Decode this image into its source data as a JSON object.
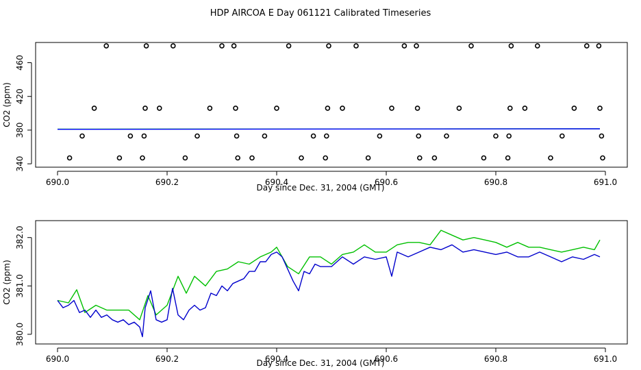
{
  "title": "HDP AIRCOA E  Day 061121  Calibrated Timeseries",
  "chart_data": [
    {
      "type": "scatter",
      "xlabel": "Day since Dec. 31, 2004 (GMT)",
      "ylabel": "CO2 (ppm)",
      "xlim": [
        689.96,
        691.04
      ],
      "ylim": [
        336,
        484
      ],
      "xticks": [
        "690.0",
        "690.2",
        "690.4",
        "690.6",
        "690.8",
        "691.0"
      ],
      "yticks": [
        "340",
        "380",
        "420",
        "460"
      ],
      "points": [
        [
          690.022,
          347
        ],
        [
          690.045,
          373
        ],
        [
          690.067,
          406
        ],
        [
          690.089,
          480
        ],
        [
          690.113,
          347
        ],
        [
          690.133,
          373
        ],
        [
          690.155,
          347
        ],
        [
          690.158,
          373
        ],
        [
          690.16,
          406
        ],
        [
          690.162,
          480
        ],
        [
          690.186,
          406
        ],
        [
          690.211,
          480
        ],
        [
          690.233,
          347
        ],
        [
          690.255,
          373
        ],
        [
          690.278,
          406
        ],
        [
          690.3,
          480
        ],
        [
          690.322,
          480
        ],
        [
          690.325,
          406
        ],
        [
          690.327,
          373
        ],
        [
          690.329,
          347
        ],
        [
          690.355,
          347
        ],
        [
          690.378,
          373
        ],
        [
          690.4,
          406
        ],
        [
          690.422,
          480
        ],
        [
          690.445,
          347
        ],
        [
          690.467,
          373
        ],
        [
          690.489,
          347
        ],
        [
          690.491,
          373
        ],
        [
          690.493,
          406
        ],
        [
          690.495,
          480
        ],
        [
          690.52,
          406
        ],
        [
          690.545,
          480
        ],
        [
          690.567,
          347
        ],
        [
          690.588,
          373
        ],
        [
          690.61,
          406
        ],
        [
          690.633,
          480
        ],
        [
          690.655,
          480
        ],
        [
          690.657,
          406
        ],
        [
          690.659,
          373
        ],
        [
          690.661,
          347
        ],
        [
          690.688,
          347
        ],
        [
          690.71,
          373
        ],
        [
          690.733,
          406
        ],
        [
          690.755,
          480
        ],
        [
          690.778,
          347
        ],
        [
          690.8,
          373
        ],
        [
          690.822,
          347
        ],
        [
          690.824,
          373
        ],
        [
          690.826,
          406
        ],
        [
          690.828,
          480
        ],
        [
          690.853,
          406
        ],
        [
          690.876,
          480
        ],
        [
          690.9,
          347
        ],
        [
          690.921,
          373
        ],
        [
          690.943,
          406
        ],
        [
          690.966,
          480
        ],
        [
          690.988,
          480
        ],
        [
          690.99,
          406
        ],
        [
          690.993,
          373
        ],
        [
          690.995,
          347
        ]
      ],
      "series": [
        {
          "color": "#00c000",
          "x": [
            690.0,
            690.99
          ],
          "y": [
            381.1,
            381.6
          ]
        },
        {
          "color": "#0000ff",
          "x": [
            690.0,
            690.99
          ],
          "y": [
            381.0,
            381.5
          ]
        }
      ]
    },
    {
      "type": "line",
      "xlabel": "Day since Dec. 31, 2004 (GMT)",
      "ylabel": "CO2 (ppm)",
      "xlim": [
        689.96,
        691.04
      ],
      "ylim": [
        379.8,
        382.35
      ],
      "xticks": [
        "690.0",
        "690.2",
        "690.4",
        "690.6",
        "690.8",
        "691.0"
      ],
      "yticks": [
        "380.0",
        "381.0",
        "382.0"
      ],
      "series": [
        {
          "color": "#00c000",
          "x": [
            690.0,
            690.02,
            690.035,
            690.05,
            690.07,
            690.09,
            690.11,
            690.13,
            690.15,
            690.165,
            690.18,
            690.2,
            690.22,
            690.235,
            690.25,
            690.27,
            690.29,
            690.31,
            690.33,
            690.35,
            690.37,
            690.39,
            690.4,
            690.42,
            690.44,
            690.46,
            690.48,
            690.5,
            690.52,
            690.54,
            690.56,
            690.58,
            690.6,
            690.62,
            690.64,
            690.66,
            690.68,
            690.7,
            690.72,
            690.74,
            690.76,
            690.78,
            690.8,
            690.82,
            690.84,
            690.86,
            690.88,
            690.9,
            690.92,
            690.94,
            690.96,
            690.98,
            690.99
          ],
          "y": [
            380.7,
            380.65,
            380.92,
            380.45,
            380.6,
            380.5,
            380.5,
            380.5,
            380.3,
            380.8,
            380.4,
            380.6,
            381.2,
            380.85,
            381.2,
            381.0,
            381.3,
            381.35,
            381.5,
            381.45,
            381.6,
            381.7,
            381.8,
            381.4,
            381.25,
            381.6,
            381.6,
            381.45,
            381.65,
            381.7,
            381.85,
            381.7,
            381.7,
            381.85,
            381.9,
            381.9,
            381.85,
            382.15,
            382.05,
            381.95,
            382.0,
            381.95,
            381.9,
            381.8,
            381.9,
            381.8,
            381.8,
            381.75,
            381.7,
            381.75,
            381.8,
            381.75,
            381.95
          ]
        },
        {
          "color": "#0000cc",
          "x": [
            690.0,
            690.01,
            690.02,
            690.03,
            690.04,
            690.05,
            690.06,
            690.07,
            690.08,
            690.09,
            690.1,
            690.11,
            690.12,
            690.13,
            690.14,
            690.15,
            690.155,
            690.16,
            690.17,
            690.18,
            690.19,
            690.2,
            690.21,
            690.22,
            690.23,
            690.24,
            690.25,
            690.26,
            690.27,
            690.28,
            690.29,
            690.3,
            690.31,
            690.32,
            690.33,
            690.34,
            690.35,
            690.36,
            690.37,
            690.38,
            690.39,
            690.4,
            690.41,
            690.42,
            690.43,
            690.44,
            690.45,
            690.46,
            690.47,
            690.48,
            690.5,
            690.52,
            690.54,
            690.56,
            690.58,
            690.6,
            690.61,
            690.62,
            690.64,
            690.66,
            690.68,
            690.7,
            690.72,
            690.74,
            690.76,
            690.78,
            690.8,
            690.82,
            690.84,
            690.86,
            690.88,
            690.9,
            690.92,
            690.94,
            690.96,
            690.98,
            690.99
          ],
          "y": [
            380.7,
            380.55,
            380.6,
            380.7,
            380.45,
            380.5,
            380.35,
            380.5,
            380.35,
            380.4,
            380.3,
            380.25,
            380.3,
            380.2,
            380.25,
            380.15,
            379.95,
            380.55,
            380.9,
            380.3,
            380.25,
            380.3,
            380.95,
            380.4,
            380.3,
            380.5,
            380.6,
            380.5,
            380.55,
            380.85,
            380.8,
            381.0,
            380.9,
            381.05,
            381.1,
            381.15,
            381.3,
            381.3,
            381.5,
            381.5,
            381.65,
            381.7,
            381.6,
            381.35,
            381.1,
            380.9,
            381.3,
            381.25,
            381.45,
            381.4,
            381.4,
            381.6,
            381.45,
            381.6,
            381.55,
            381.6,
            381.2,
            381.7,
            381.6,
            381.7,
            381.8,
            381.75,
            381.85,
            381.7,
            381.75,
            381.7,
            381.65,
            381.7,
            381.6,
            381.6,
            381.7,
            381.6,
            381.5,
            381.6,
            381.55,
            381.65,
            381.6
          ]
        }
      ]
    }
  ]
}
